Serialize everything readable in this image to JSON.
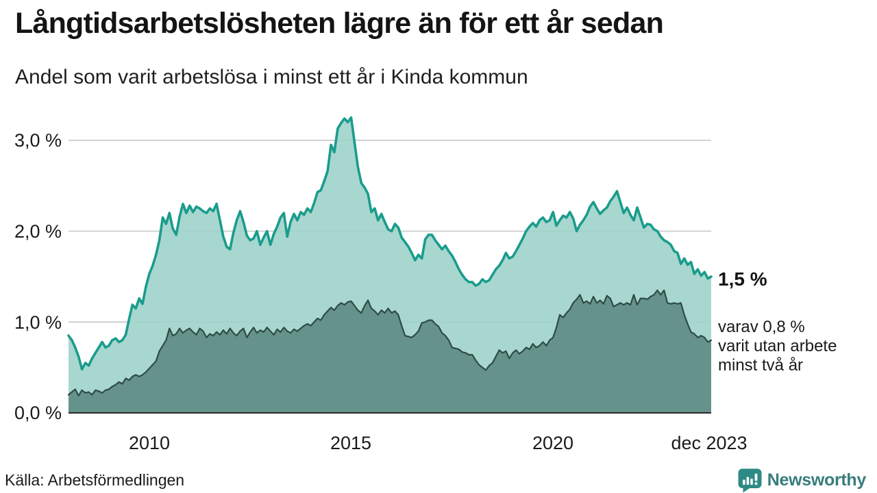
{
  "header": {
    "title": "Långtidsarbetslösheten lägre än för ett år sedan",
    "subtitle": "Andel som varit arbetslösa i minst ett år i Kinda kommun"
  },
  "annotations": {
    "latest_total": "1,5 %",
    "sub_lines": [
      "varav 0,8 %",
      "varit utan arbete",
      "minst två år"
    ]
  },
  "footer": {
    "source": "Källa: Arbetsförmedlingen",
    "brand": "Newsworthy"
  },
  "colors": {
    "line_min_one_year": "#1a9c8c",
    "fill_min_one_year": "#9fd3cb",
    "line_min_two_years": "#2e4b46",
    "fill_min_two_years": "#5f8c84",
    "gridline": "#cccccc",
    "axis_line": "#2b2b2b",
    "brand_teal": "#2e8a85",
    "brand_text": "#377d7b"
  },
  "chart_data": {
    "type": "area",
    "title": "Långtidsarbetslösheten lägre än för ett år sedan",
    "subtitle": "Andel som varit arbetslösa i minst ett år i Kinda kommun",
    "x_unit": "month",
    "x_range": [
      "2008-01",
      "2023-12"
    ],
    "ylim": [
      0,
      3.4
    ],
    "grid": "horizontal",
    "legend_position": "none",
    "yticks": [
      {
        "value": 0,
        "label": "0,0 %"
      },
      {
        "value": 1,
        "label": "1,0 %"
      },
      {
        "value": 2,
        "label": "2,0 %"
      },
      {
        "value": 3,
        "label": "3,0 %"
      }
    ],
    "xticks": [
      {
        "month_index": 24,
        "label": "2010"
      },
      {
        "month_index": 84,
        "label": "2015"
      },
      {
        "month_index": 144,
        "label": "2020"
      },
      {
        "month_index": 191,
        "label": "dec 2023"
      }
    ],
    "series": [
      {
        "name": "Andel arbetslösa minst ett år",
        "latest_label": "1,5 %",
        "values": [
          0.85,
          0.8,
          0.72,
          0.62,
          0.48,
          0.55,
          0.52,
          0.6,
          0.66,
          0.72,
          0.78,
          0.72,
          0.74,
          0.8,
          0.82,
          0.78,
          0.8,
          0.86,
          1.03,
          1.19,
          1.15,
          1.26,
          1.2,
          1.39,
          1.53,
          1.62,
          1.74,
          1.9,
          2.15,
          2.08,
          2.2,
          2.03,
          1.96,
          2.16,
          2.3,
          2.2,
          2.28,
          2.21,
          2.27,
          2.25,
          2.22,
          2.2,
          2.25,
          2.22,
          2.3,
          2.12,
          1.94,
          1.83,
          1.8,
          1.98,
          2.12,
          2.22,
          2.1,
          1.95,
          1.9,
          1.92,
          2.0,
          1.85,
          1.93,
          2.0,
          1.85,
          1.97,
          2.05,
          2.15,
          2.2,
          1.94,
          2.1,
          2.19,
          2.12,
          2.21,
          2.18,
          2.25,
          2.21,
          2.31,
          2.43,
          2.45,
          2.55,
          2.66,
          2.95,
          2.87,
          3.13,
          3.19,
          3.24,
          3.2,
          3.25,
          2.98,
          2.71,
          2.53,
          2.48,
          2.41,
          2.21,
          2.25,
          2.12,
          2.19,
          2.1,
          2.02,
          2.0,
          2.08,
          2.04,
          1.93,
          1.88,
          1.83,
          1.76,
          1.68,
          1.74,
          1.7,
          1.91,
          1.96,
          1.96,
          1.9,
          1.85,
          1.8,
          1.84,
          1.78,
          1.73,
          1.66,
          1.58,
          1.52,
          1.47,
          1.44,
          1.44,
          1.4,
          1.42,
          1.47,
          1.44,
          1.46,
          1.52,
          1.58,
          1.62,
          1.68,
          1.76,
          1.7,
          1.72,
          1.78,
          1.85,
          1.92,
          2.0,
          2.05,
          2.09,
          2.05,
          2.12,
          2.15,
          2.1,
          2.12,
          2.21,
          2.06,
          2.12,
          2.17,
          2.15,
          2.21,
          2.14,
          2.0,
          2.07,
          2.12,
          2.18,
          2.27,
          2.32,
          2.25,
          2.19,
          2.23,
          2.26,
          2.33,
          2.38,
          2.44,
          2.32,
          2.2,
          2.26,
          2.18,
          2.12,
          2.26,
          2.15,
          2.04,
          2.08,
          2.07,
          2.02,
          2.0,
          1.94,
          1.9,
          1.88,
          1.85,
          1.78,
          1.76,
          1.64,
          1.7,
          1.63,
          1.66,
          1.53,
          1.58,
          1.51,
          1.55,
          1.48,
          1.5
        ]
      },
      {
        "name": "Andel arbetslösa minst två år",
        "latest_label": "0,8 %",
        "values": [
          0.2,
          0.23,
          0.26,
          0.19,
          0.25,
          0.22,
          0.23,
          0.2,
          0.25,
          0.24,
          0.22,
          0.25,
          0.26,
          0.29,
          0.31,
          0.34,
          0.32,
          0.38,
          0.36,
          0.4,
          0.42,
          0.4,
          0.42,
          0.45,
          0.49,
          0.53,
          0.57,
          0.68,
          0.74,
          0.8,
          0.93,
          0.85,
          0.87,
          0.93,
          0.88,
          0.91,
          0.93,
          0.89,
          0.86,
          0.93,
          0.9,
          0.83,
          0.87,
          0.85,
          0.89,
          0.86,
          0.91,
          0.87,
          0.93,
          0.88,
          0.85,
          0.9,
          0.93,
          0.83,
          0.89,
          0.94,
          0.88,
          0.91,
          0.89,
          0.94,
          0.9,
          0.86,
          0.92,
          0.89,
          0.94,
          0.9,
          0.88,
          0.92,
          0.9,
          0.93,
          0.96,
          0.98,
          0.96,
          1.0,
          1.04,
          1.02,
          1.08,
          1.12,
          1.16,
          1.13,
          1.18,
          1.21,
          1.19,
          1.22,
          1.23,
          1.18,
          1.13,
          1.1,
          1.18,
          1.24,
          1.15,
          1.12,
          1.08,
          1.13,
          1.1,
          1.15,
          1.1,
          1.12,
          1.08,
          0.96,
          0.85,
          0.84,
          0.83,
          0.86,
          0.9,
          0.99,
          1.0,
          1.02,
          1.02,
          0.98,
          0.95,
          0.88,
          0.85,
          0.8,
          0.72,
          0.71,
          0.7,
          0.67,
          0.66,
          0.64,
          0.64,
          0.58,
          0.53,
          0.5,
          0.47,
          0.52,
          0.55,
          0.62,
          0.69,
          0.66,
          0.68,
          0.6,
          0.66,
          0.69,
          0.65,
          0.68,
          0.72,
          0.7,
          0.76,
          0.72,
          0.74,
          0.78,
          0.74,
          0.8,
          0.83,
          0.94,
          1.08,
          1.05,
          1.1,
          1.14,
          1.21,
          1.25,
          1.3,
          1.21,
          1.23,
          1.2,
          1.28,
          1.21,
          1.24,
          1.2,
          1.29,
          1.26,
          1.17,
          1.19,
          1.21,
          1.19,
          1.21,
          1.19,
          1.3,
          1.19,
          1.26,
          1.26,
          1.25,
          1.28,
          1.3,
          1.35,
          1.3,
          1.35,
          1.21,
          1.2,
          1.21,
          1.2,
          1.21,
          1.08,
          0.98,
          0.89,
          0.87,
          0.83,
          0.85,
          0.83,
          0.78,
          0.8
        ]
      }
    ]
  }
}
